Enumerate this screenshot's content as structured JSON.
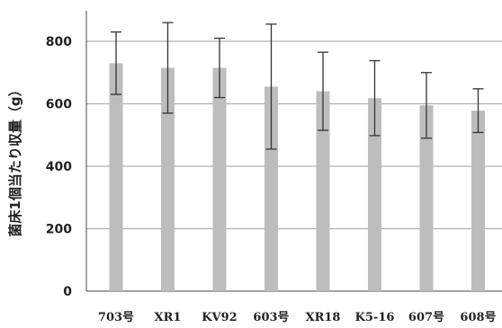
{
  "chart_data": {
    "type": "bar",
    "title": "",
    "xlabel": "",
    "ylabel": "菌床1個当たり収量（g）",
    "ylim": [
      0,
      800
    ],
    "yticks": [
      0,
      200,
      400,
      600,
      800
    ],
    "grid": true,
    "categories": [
      "703号",
      "XR1",
      "KV92",
      "603号",
      "XR18",
      "K5-16",
      "607号",
      "608号"
    ],
    "values": [
      730,
      715,
      715,
      655,
      640,
      618,
      595,
      578
    ],
    "errors": [
      100,
      145,
      95,
      200,
      125,
      120,
      105,
      70
    ],
    "colors": {
      "bar": "#bdbdbd",
      "grid": "#b0b0b0",
      "error": "#333333",
      "axis": "#444444"
    }
  }
}
